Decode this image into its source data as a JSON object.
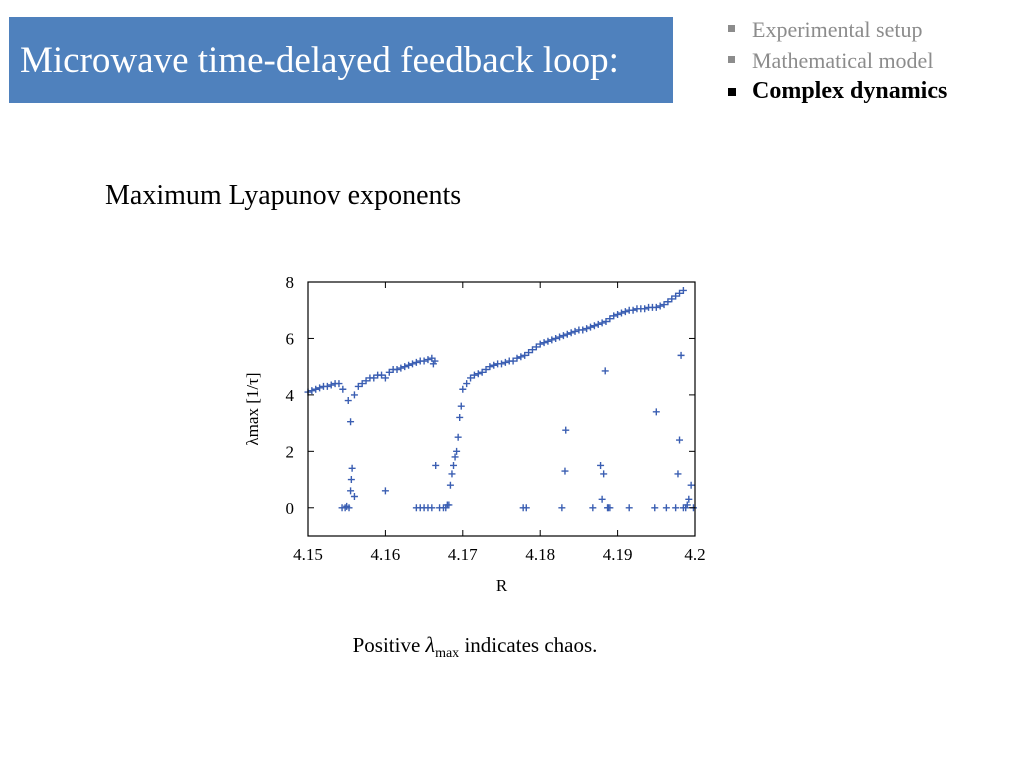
{
  "slide": {
    "title": "Microwave time-delayed feedback loop:",
    "nav": [
      {
        "label": "Experimental setup",
        "active": false
      },
      {
        "label": "Mathematical model",
        "active": false
      },
      {
        "label": "Complex dynamics",
        "active": true
      }
    ],
    "subtitle": "Maximum Lyapunov exponents",
    "caption": {
      "prefix": "Positive ",
      "symbol": "λ",
      "subscript": "max",
      "suffix": " indicates chaos."
    }
  },
  "colors": {
    "title_bg": "#4f81bd",
    "marker": "#3a5eb2"
  },
  "chart_data": {
    "type": "scatter",
    "marker": "plus",
    "xlabel": "R",
    "ylabel": "λmax [1/τ]",
    "xlim": [
      4.15,
      4.2
    ],
    "ylim": [
      -1,
      8
    ],
    "xticks": [
      "4.15",
      "4.16",
      "4.17",
      "4.18",
      "4.19",
      "4.2"
    ],
    "yticks": [
      "0",
      "2",
      "4",
      "6",
      "8"
    ],
    "grid": false,
    "legend": "none",
    "x": [
      4.15,
      4.1505,
      4.151,
      4.1515,
      4.152,
      4.1525,
      4.153,
      4.1535,
      4.154,
      4.1545,
      4.1552,
      4.1555,
      4.156,
      4.1565,
      4.157,
      4.1575,
      4.158,
      4.1585,
      4.159,
      4.1595,
      4.16,
      4.1605,
      4.161,
      4.1615,
      4.162,
      4.1625,
      4.163,
      4.1635,
      4.164,
      4.1645,
      4.165,
      4.1655,
      4.166,
      4.1662,
      4.1664,
      4.1544,
      4.1548,
      4.155,
      4.1553,
      4.1555,
      4.1556,
      4.1557,
      4.156,
      4.16,
      4.164,
      4.1645,
      4.165,
      4.1655,
      4.166,
      4.1665,
      4.167,
      4.1675,
      4.1678,
      4.168,
      4.1682,
      4.1684,
      4.1686,
      4.1688,
      4.169,
      4.1692,
      4.1694,
      4.1696,
      4.1698,
      4.17,
      4.1705,
      4.171,
      4.1715,
      4.172,
      4.1725,
      4.173,
      4.1735,
      4.174,
      4.1745,
      4.175,
      4.1755,
      4.176,
      4.1765,
      4.177,
      4.1775,
      4.178,
      4.1785,
      4.179,
      4.1795,
      4.18,
      4.1805,
      4.181,
      4.1815,
      4.182,
      4.1825,
      4.183,
      4.1835,
      4.184,
      4.1845,
      4.185,
      4.1855,
      4.186,
      4.1865,
      4.187,
      4.1875,
      4.188,
      4.1885,
      4.189,
      4.1895,
      4.19,
      4.1905,
      4.191,
      4.1915,
      4.192,
      4.1925,
      4.193,
      4.1935,
      4.194,
      4.1945,
      4.195,
      4.1955,
      4.196,
      4.1965,
      4.197,
      4.1975,
      4.198,
      4.1985,
      4.1778,
      4.1782,
      4.1828,
      4.1832,
      4.1833,
      4.1868,
      4.1878,
      4.188,
      4.1882,
      4.1884,
      4.1887,
      4.189,
      4.1948,
      4.195,
      4.1975,
      4.1978,
      4.198,
      4.1982,
      4.1985,
      4.1988,
      4.199,
      4.1992,
      4.1995,
      4.1998,
      4.1963,
      4.1915,
      4.1888
    ],
    "y": [
      4.1,
      4.15,
      4.2,
      4.25,
      4.3,
      4.3,
      4.35,
      4.4,
      4.4,
      4.2,
      3.8,
      3.05,
      4.0,
      4.3,
      4.4,
      4.5,
      4.6,
      4.6,
      4.7,
      4.7,
      4.6,
      4.8,
      4.9,
      4.9,
      4.95,
      5.0,
      5.05,
      5.1,
      5.15,
      5.2,
      5.2,
      5.25,
      5.3,
      5.1,
      5.2,
      0.0,
      0.0,
      0.05,
      0.0,
      0.6,
      1.0,
      1.4,
      0.4,
      0.6,
      0.0,
      0.0,
      0.0,
      0.0,
      0.0,
      1.5,
      0.0,
      0.0,
      0.0,
      0.1,
      0.1,
      0.8,
      1.2,
      1.5,
      1.8,
      2.0,
      2.5,
      3.2,
      3.6,
      4.2,
      4.4,
      4.6,
      4.7,
      4.75,
      4.8,
      4.9,
      5.0,
      5.05,
      5.1,
      5.1,
      5.15,
      5.2,
      5.2,
      5.3,
      5.35,
      5.4,
      5.5,
      5.6,
      5.7,
      5.8,
      5.85,
      5.9,
      5.95,
      6.0,
      6.05,
      6.1,
      6.15,
      6.2,
      6.25,
      6.3,
      6.3,
      6.35,
      6.4,
      6.45,
      6.5,
      6.55,
      6.6,
      6.7,
      6.8,
      6.85,
      6.9,
      6.95,
      7.0,
      7.0,
      7.05,
      7.05,
      7.05,
      7.1,
      7.1,
      7.1,
      7.15,
      7.2,
      7.3,
      7.4,
      7.5,
      7.6,
      7.7,
      0.0,
      0.0,
      0.0,
      1.3,
      2.75,
      0.0,
      1.5,
      0.3,
      1.2,
      4.85,
      0.0,
      0.0,
      0.0,
      3.4,
      0.0,
      1.2,
      2.4,
      5.4,
      0.0,
      0.0,
      0.1,
      0.3,
      0.8,
      0.0,
      0.0,
      0.0,
      0.0
    ]
  }
}
